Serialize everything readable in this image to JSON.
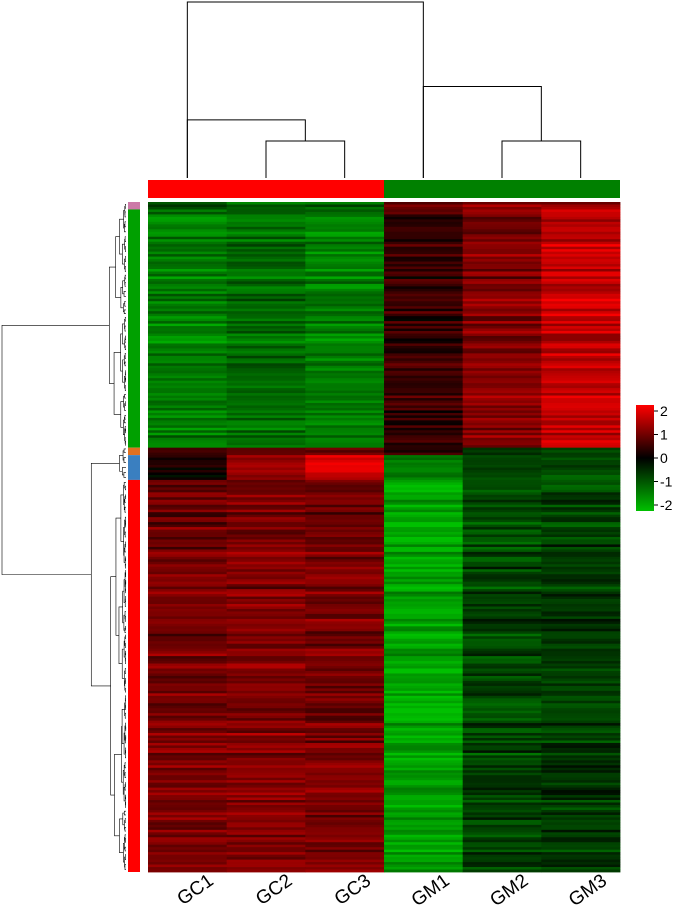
{
  "chart_data": {
    "type": "heatmap",
    "columns": [
      "GC1",
      "GC2",
      "GC3",
      "GM1",
      "GM2",
      "GM3"
    ],
    "column_groups": [
      {
        "columns": [
          "GC1",
          "GC2",
          "GC3"
        ],
        "color": "#ff0000"
      },
      {
        "columns": [
          "GM1",
          "GM2",
          "GM3"
        ],
        "color": "#008000"
      }
    ],
    "row_clusters": [
      {
        "color": "#cc79a7",
        "rows": 3
      },
      {
        "color": "#00a000",
        "rows": 96
      },
      {
        "color": "#e07020",
        "rows": 3
      },
      {
        "color": "#3a7fc0",
        "rows": 10
      },
      {
        "color": "#ff0000",
        "rows": 158
      }
    ],
    "column_dendrogram": {
      "merges": [
        {
          "left": "GC2",
          "right": "GC3",
          "height": 0.21
        },
        {
          "left": "GM2",
          "right": "GM3",
          "height": 0.21
        },
        {
          "left": "GC1",
          "right": "GC2+GC3",
          "height": 0.33
        },
        {
          "left": "GM1",
          "right": "GM2+GM3",
          "height": 0.52
        },
        {
          "left": "GC",
          "right": "GM",
          "height": 1.0
        }
      ]
    },
    "block_profiles": [
      {
        "rows": 3,
        "values": [
          -0.8,
          -1.0,
          -0.9,
          0.8,
          1.1,
          1.2
        ]
      },
      {
        "rows": 96,
        "values": [
          -1.3,
          -1.1,
          -1.3,
          0.4,
          1.0,
          1.5
        ]
      },
      {
        "rows": 3,
        "values": [
          0.6,
          0.9,
          1.0,
          0.5,
          -0.3,
          -0.5
        ]
      },
      {
        "rows": 10,
        "values": [
          0.1,
          1.1,
          1.6,
          -1.2,
          -0.8,
          -0.8
        ]
      },
      {
        "rows": 158,
        "values": [
          0.9,
          1.0,
          0.9,
          -1.7,
          -0.7,
          -0.6
        ]
      }
    ],
    "colorscale": {
      "min": -2,
      "max": 2,
      "stops": [
        {
          "value": -2,
          "color": "#00c000"
        },
        {
          "value": 0,
          "color": "#000000"
        },
        {
          "value": 2,
          "color": "#ff0000"
        }
      ]
    },
    "legend": {
      "ticks": [
        "2",
        "1",
        "0",
        "-1",
        "-2"
      ],
      "position": "right"
    }
  }
}
